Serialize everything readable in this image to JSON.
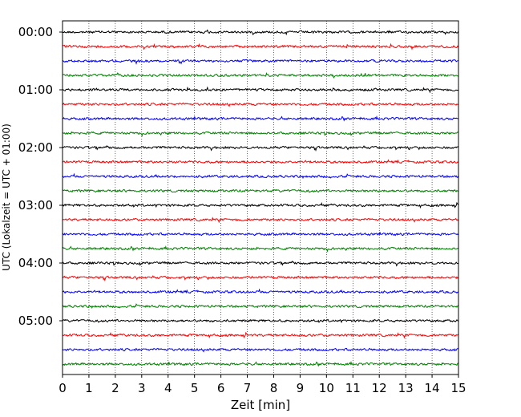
{
  "chart_data": {
    "type": "line",
    "title": "",
    "xlabel": "Zeit  [min]",
    "ylabel": "UTC (Lokalzeit = UTC + 01:00)",
    "xlim": [
      0,
      15
    ],
    "x_ticks": [
      "0",
      "1",
      "2",
      "3",
      "4",
      "5",
      "6",
      "7",
      "8",
      "9",
      "10",
      "11",
      "12",
      "13",
      "14",
      "15"
    ],
    "y_ticks": [
      "00:00",
      "01:00",
      "02:00",
      "03:00",
      "04:00",
      "05:00"
    ],
    "grid": "vertical dotted at each minute",
    "trace_interval_min": 15,
    "trace_count": 24,
    "trace_colors": [
      "#000000",
      "#ff0000",
      "#0000ff",
      "#008000"
    ],
    "trace_start_times": [
      "00:00",
      "00:15",
      "00:30",
      "00:45",
      "01:00",
      "01:15",
      "01:30",
      "01:45",
      "02:00",
      "02:15",
      "02:30",
      "02:45",
      "03:00",
      "03:15",
      "03:30",
      "03:45",
      "04:00",
      "04:15",
      "04:30",
      "04:45",
      "05:00",
      "05:15",
      "05:30",
      "05:45"
    ]
  }
}
